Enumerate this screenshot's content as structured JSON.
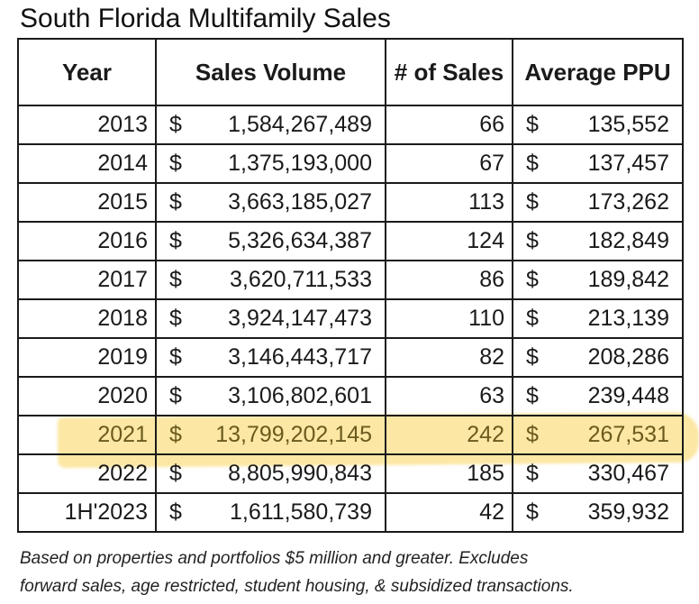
{
  "title": "South Florida Multifamily Sales",
  "table": {
    "headers": {
      "year": "Year",
      "volume": "Sales Volume",
      "count": "# of Sales",
      "ppu": "Average PPU"
    },
    "currency_symbol": "$",
    "rows": [
      {
        "year": "2013",
        "volume": "1,584,267,489",
        "count": "66",
        "ppu": "135,552"
      },
      {
        "year": "2014",
        "volume": "1,375,193,000",
        "count": "67",
        "ppu": "137,457"
      },
      {
        "year": "2015",
        "volume": "3,663,185,027",
        "count": "113",
        "ppu": "173,262"
      },
      {
        "year": "2016",
        "volume": "5,326,634,387",
        "count": "124",
        "ppu": "182,849"
      },
      {
        "year": "2017",
        "volume": "3,620,711,533",
        "count": "86",
        "ppu": "189,842"
      },
      {
        "year": "2018",
        "volume": "3,924,147,473",
        "count": "110",
        "ppu": "213,139"
      },
      {
        "year": "2019",
        "volume": "3,146,443,717",
        "count": "82",
        "ppu": "208,286"
      },
      {
        "year": "2020",
        "volume": "3,106,802,601",
        "count": "63",
        "ppu": "239,448"
      },
      {
        "year": "2021",
        "volume": "13,799,202,145",
        "count": "242",
        "ppu": "267,531"
      },
      {
        "year": "2022",
        "volume": "8,805,990,843",
        "count": "185",
        "ppu": "330,467"
      },
      {
        "year": "1H'2023",
        "volume": "1,611,580,739",
        "count": "42",
        "ppu": "359,932"
      }
    ],
    "highlighted_year": "2021",
    "highlight_color": "#FAD45A"
  },
  "footnote": {
    "line1": "Based on properties and portfolios $5 million and greater. Excludes",
    "line2": "forward sales, age restricted, student housing, & subsidized transactions."
  }
}
